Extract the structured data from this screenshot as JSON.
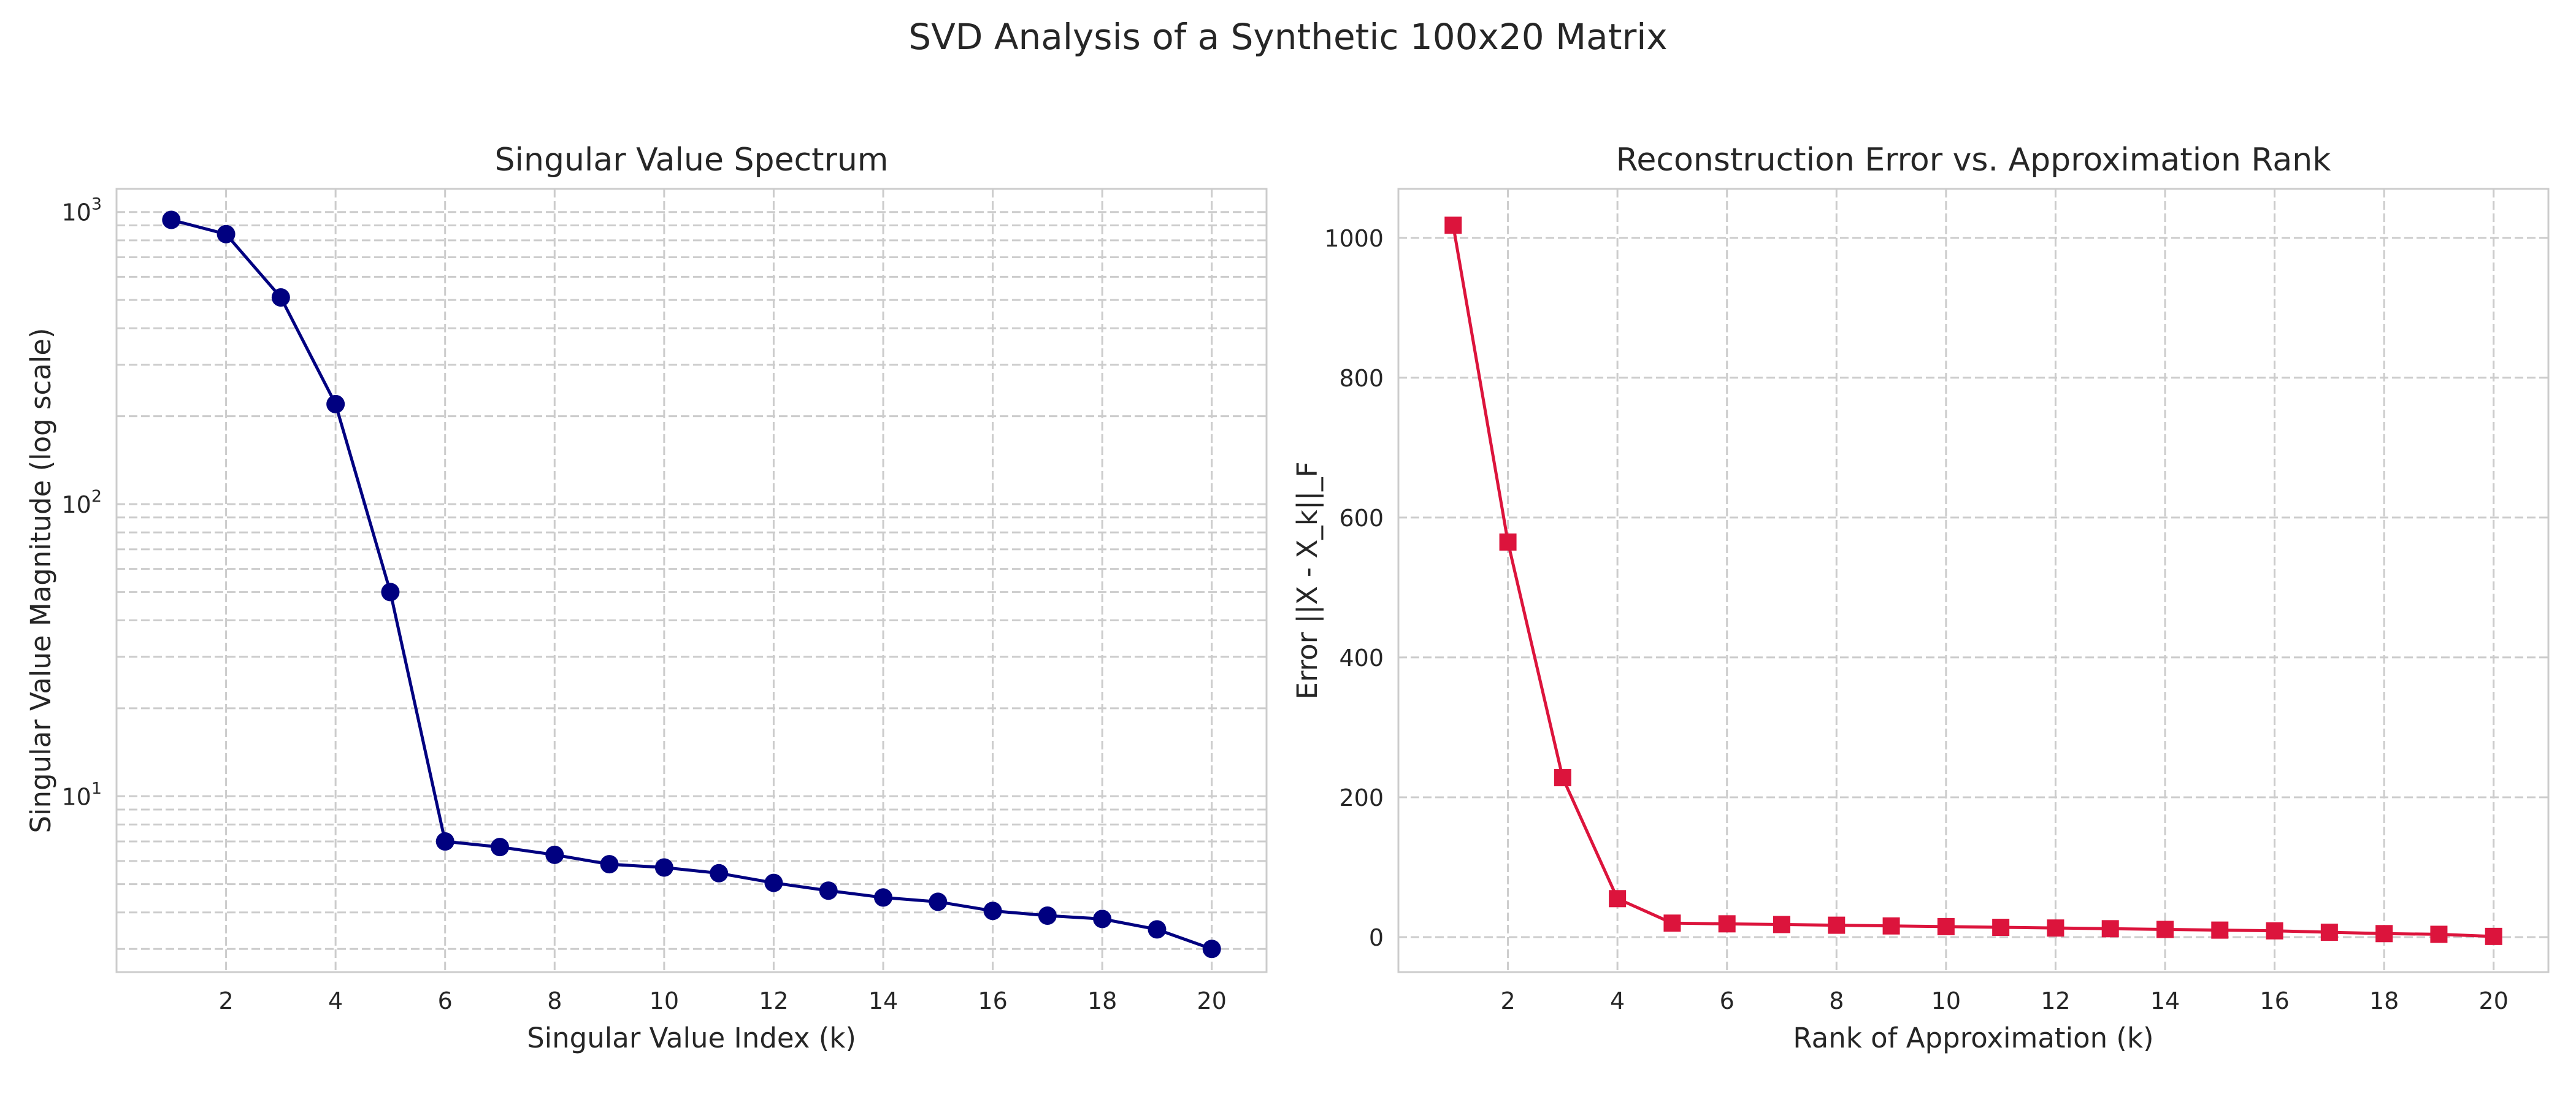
{
  "figure": {
    "title": "SVD Analysis of a Synthetic 100x20 Matrix"
  },
  "chart_data": [
    {
      "type": "line",
      "title": "Singular Value Spectrum",
      "xlabel": "Singular Value Index (k)",
      "ylabel": "Singular Value Magnitude (log scale)",
      "y_scale": "log",
      "grid": true,
      "marker": "circle",
      "color": "#000080",
      "xlim": [
        0,
        21
      ],
      "ylim": [
        2.5,
        1200
      ],
      "x_ticks": [
        2,
        4,
        6,
        8,
        10,
        12,
        14,
        16,
        18,
        20
      ],
      "y_ticks": [
        {
          "value": 10,
          "base": "10",
          "exp": "1"
        },
        {
          "value": 100,
          "base": "10",
          "exp": "2"
        },
        {
          "value": 1000,
          "base": "10",
          "exp": "3"
        }
      ],
      "x": [
        1,
        2,
        3,
        4,
        5,
        6,
        7,
        8,
        9,
        10,
        11,
        12,
        13,
        14,
        15,
        16,
        17,
        18,
        19,
        20
      ],
      "values": [
        940,
        840,
        510,
        220,
        50,
        7.0,
        6.7,
        6.3,
        5.85,
        5.7,
        5.45,
        5.05,
        4.75,
        4.5,
        4.35,
        4.05,
        3.9,
        3.8,
        3.5,
        3.0
      ]
    },
    {
      "type": "line",
      "title": "Reconstruction Error vs. Approximation Rank",
      "xlabel": "Rank of Approximation (k)",
      "ylabel": "Error ||X - X_k||_F",
      "y_scale": "linear",
      "grid": true,
      "marker": "square",
      "color": "#DC143C",
      "xlim": [
        0,
        21
      ],
      "ylim": [
        -50,
        1070
      ],
      "x_ticks": [
        2,
        4,
        6,
        8,
        10,
        12,
        14,
        16,
        18,
        20
      ],
      "y_ticks": [
        0,
        200,
        400,
        600,
        800,
        1000
      ],
      "x": [
        1,
        2,
        3,
        4,
        5,
        6,
        7,
        8,
        9,
        10,
        11,
        12,
        13,
        14,
        15,
        16,
        17,
        18,
        19,
        20
      ],
      "values": [
        1018,
        565,
        228,
        55,
        20,
        19,
        18,
        17,
        16,
        15,
        14,
        13,
        12,
        11,
        10,
        9,
        7,
        5,
        4,
        1
      ]
    }
  ]
}
